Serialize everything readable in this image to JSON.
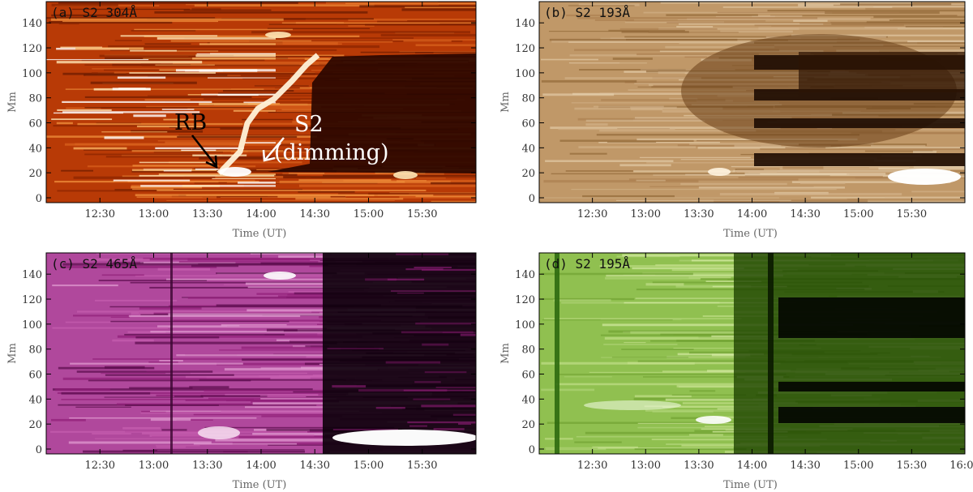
{
  "figure": {
    "xlabel": "Time (UT)",
    "ylabel": "Mm"
  },
  "chart_data": [
    {
      "type": "heatmap",
      "title": "(a) S2 304Å",
      "xlabel": "Time (UT)",
      "ylabel": "Mm",
      "colormap": [
        "#3a0a00",
        "#8c2600",
        "#c8480c",
        "#f0903c",
        "#ffe6b4",
        "#ffffff"
      ],
      "xlim": [
        "12:00",
        "16:00"
      ],
      "ylim": [
        0,
        157
      ],
      "x_ticks": [
        "12:30",
        "13:00",
        "13:30",
        "14:00",
        "14:30",
        "15:00",
        "15:30"
      ],
      "y_ticks": [
        0,
        20,
        40,
        60,
        80,
        100,
        120,
        140
      ],
      "annotations": [
        {
          "text": "RB",
          "color": "#000000"
        },
        {
          "text": "S2",
          "color": "#ffffff"
        },
        {
          "text": "(dimming)",
          "color": "#ffffff"
        }
      ]
    },
    {
      "type": "heatmap",
      "title": "(b) S2 193Å",
      "xlabel": "Time (UT)",
      "ylabel": "Mm",
      "colormap": [
        "#140600",
        "#4a2a10",
        "#8a6030",
        "#c09868",
        "#ecd8b8",
        "#ffffff"
      ],
      "xlim": [
        "12:00",
        "16:00"
      ],
      "ylim": [
        0,
        157
      ],
      "x_ticks": [
        "12:30",
        "13:00",
        "13:30",
        "14:00",
        "14:30",
        "15:00",
        "15:30"
      ],
      "y_ticks": [
        0,
        20,
        40,
        60,
        80,
        100,
        120,
        140
      ],
      "annotations": []
    },
    {
      "type": "heatmap",
      "title": "(c) S2 465Å",
      "xlabel": "Time (UT)",
      "ylabel": "Mm",
      "colormap": [
        "#000000",
        "#3a0630",
        "#901e78",
        "#c860b0",
        "#f0c8e8",
        "#ffffff"
      ],
      "xlim": [
        "12:00",
        "16:00"
      ],
      "ylim": [
        0,
        157
      ],
      "x_ticks": [
        "12:30",
        "13:00",
        "13:30",
        "14:00",
        "14:30",
        "15:00",
        "15:30"
      ],
      "y_ticks": [
        0,
        20,
        40,
        60,
        80,
        100,
        120,
        140
      ],
      "annotations": []
    },
    {
      "type": "heatmap",
      "title": "(d) S2 195Å",
      "xlabel": "Time (UT)",
      "ylabel": "Mm",
      "colormap": [
        "#000000",
        "#1e4400",
        "#4a8a10",
        "#90c050",
        "#d8eca8",
        "#ffffff"
      ],
      "xlim": [
        "12:00",
        "16:00"
      ],
      "ylim": [
        0,
        157
      ],
      "x_ticks": [
        "12:30",
        "13:00",
        "13:30",
        "14:00",
        "14:30",
        "15:00",
        "15:30",
        "16:00"
      ],
      "y_ticks": [
        0,
        20,
        40,
        60,
        80,
        100,
        120,
        140
      ],
      "annotations": []
    }
  ]
}
